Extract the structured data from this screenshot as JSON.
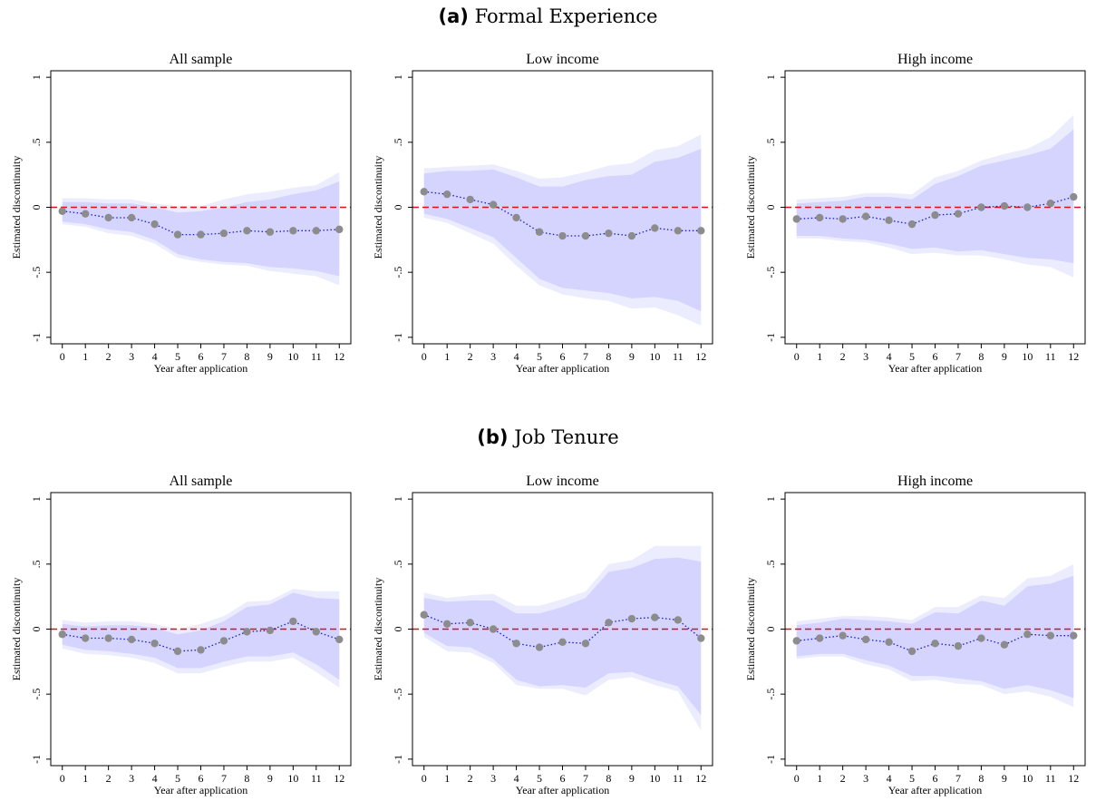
{
  "panels": [
    {
      "letter": "(a)",
      "title": "Formal Experience",
      "charts": [
        {
          "title": "All sample",
          "point": [
            -0.03,
            -0.05,
            -0.08,
            -0.08,
            -0.13,
            -0.21,
            -0.21,
            -0.2,
            -0.18,
            -0.19,
            -0.18,
            -0.18,
            -0.17
          ],
          "ci95_lo": [
            -0.11,
            -0.13,
            -0.17,
            -0.19,
            -0.25,
            -0.36,
            -0.4,
            -0.42,
            -0.43,
            -0.46,
            -0.47,
            -0.49,
            -0.53
          ],
          "ci95_hi": [
            0.04,
            0.04,
            0.03,
            0.03,
            0.0,
            -0.04,
            -0.03,
            0.0,
            0.04,
            0.06,
            0.1,
            0.13,
            0.2
          ],
          "ci99_lo": [
            -0.13,
            -0.15,
            -0.2,
            -0.22,
            -0.28,
            -0.39,
            -0.42,
            -0.44,
            -0.45,
            -0.49,
            -0.51,
            -0.53,
            -0.6
          ],
          "ci99_hi": [
            0.07,
            0.07,
            0.06,
            0.06,
            0.03,
            0.01,
            0.01,
            0.06,
            0.1,
            0.12,
            0.15,
            0.17,
            0.27
          ]
        },
        {
          "title": "Low income",
          "point": [
            0.12,
            0.1,
            0.06,
            0.02,
            -0.08,
            -0.19,
            -0.22,
            -0.22,
            -0.2,
            -0.22,
            -0.16,
            -0.18,
            -0.18
          ],
          "ci95_lo": [
            -0.05,
            -0.09,
            -0.16,
            -0.23,
            -0.39,
            -0.55,
            -0.62,
            -0.64,
            -0.66,
            -0.7,
            -0.69,
            -0.72,
            -0.8
          ],
          "ci95_hi": [
            0.26,
            0.28,
            0.28,
            0.29,
            0.23,
            0.16,
            0.16,
            0.21,
            0.24,
            0.25,
            0.35,
            0.38,
            0.45
          ],
          "ci99_lo": [
            -0.08,
            -0.12,
            -0.2,
            -0.28,
            -0.45,
            -0.6,
            -0.67,
            -0.7,
            -0.72,
            -0.78,
            -0.77,
            -0.83,
            -0.91
          ],
          "ci99_hi": [
            0.3,
            0.31,
            0.32,
            0.33,
            0.28,
            0.22,
            0.23,
            0.27,
            0.32,
            0.34,
            0.44,
            0.47,
            0.56
          ]
        },
        {
          "title": "High income",
          "point": [
            -0.09,
            -0.08,
            -0.09,
            -0.07,
            -0.1,
            -0.13,
            -0.06,
            -0.05,
            0.0,
            0.01,
            0.0,
            0.03,
            0.08
          ],
          "ci95_lo": [
            -0.22,
            -0.22,
            -0.24,
            -0.25,
            -0.28,
            -0.32,
            -0.31,
            -0.34,
            -0.33,
            -0.36,
            -0.39,
            -0.4,
            -0.43
          ],
          "ci95_hi": [
            0.03,
            0.04,
            0.05,
            0.08,
            0.08,
            0.06,
            0.18,
            0.24,
            0.32,
            0.36,
            0.4,
            0.45,
            0.6
          ],
          "ci99_lo": [
            -0.24,
            -0.24,
            -0.26,
            -0.27,
            -0.31,
            -0.36,
            -0.35,
            -0.37,
            -0.37,
            -0.4,
            -0.44,
            -0.46,
            -0.54
          ],
          "ci99_hi": [
            0.06,
            0.07,
            0.08,
            0.11,
            0.11,
            0.1,
            0.23,
            0.28,
            0.36,
            0.41,
            0.45,
            0.54,
            0.71
          ]
        }
      ]
    },
    {
      "letter": "(b)",
      "title": "Job Tenure",
      "charts": [
        {
          "title": "All sample",
          "point": [
            -0.04,
            -0.07,
            -0.07,
            -0.08,
            -0.11,
            -0.17,
            -0.16,
            -0.09,
            -0.02,
            -0.01,
            0.06,
            -0.02,
            -0.08
          ],
          "ci95_lo": [
            -0.12,
            -0.16,
            -0.17,
            -0.19,
            -0.22,
            -0.3,
            -0.3,
            -0.25,
            -0.21,
            -0.21,
            -0.18,
            -0.27,
            -0.39
          ],
          "ci95_hi": [
            0.04,
            0.02,
            0.03,
            0.03,
            0.01,
            -0.04,
            -0.01,
            0.06,
            0.17,
            0.19,
            0.28,
            0.24,
            0.23
          ],
          "ci99_lo": [
            -0.15,
            -0.19,
            -0.2,
            -0.22,
            -0.26,
            -0.34,
            -0.34,
            -0.29,
            -0.25,
            -0.25,
            -0.22,
            -0.33,
            -0.45
          ],
          "ci99_hi": [
            0.07,
            0.05,
            0.06,
            0.06,
            0.04,
            0.0,
            0.04,
            0.1,
            0.21,
            0.22,
            0.31,
            0.29,
            0.29
          ]
        },
        {
          "title": "Low income",
          "point": [
            0.11,
            0.04,
            0.05,
            0.0,
            -0.11,
            -0.14,
            -0.1,
            -0.11,
            0.05,
            0.08,
            0.09,
            0.07,
            -0.07
          ],
          "ci95_lo": [
            -0.03,
            -0.13,
            -0.14,
            -0.23,
            -0.39,
            -0.44,
            -0.43,
            -0.45,
            -0.34,
            -0.33,
            -0.39,
            -0.44,
            -0.66
          ],
          "ci95_hi": [
            0.24,
            0.21,
            0.22,
            0.22,
            0.12,
            0.12,
            0.17,
            0.24,
            0.44,
            0.47,
            0.54,
            0.55,
            0.52
          ],
          "ci99_lo": [
            -0.06,
            -0.17,
            -0.18,
            -0.26,
            -0.43,
            -0.46,
            -0.46,
            -0.51,
            -0.39,
            -0.37,
            -0.43,
            -0.48,
            -0.78
          ],
          "ci99_hi": [
            0.28,
            0.24,
            0.26,
            0.27,
            0.18,
            0.18,
            0.23,
            0.29,
            0.5,
            0.53,
            0.64,
            0.64,
            0.64
          ]
        },
        {
          "title": "High income",
          "point": [
            -0.09,
            -0.07,
            -0.05,
            -0.08,
            -0.1,
            -0.17,
            -0.11,
            -0.13,
            -0.07,
            -0.12,
            -0.04,
            -0.05,
            -0.05
          ],
          "ci95_lo": [
            -0.21,
            -0.19,
            -0.19,
            -0.24,
            -0.28,
            -0.36,
            -0.36,
            -0.38,
            -0.4,
            -0.46,
            -0.43,
            -0.47,
            -0.53
          ],
          "ci95_hi": [
            0.03,
            0.05,
            0.08,
            0.07,
            0.06,
            0.04,
            0.13,
            0.12,
            0.22,
            0.18,
            0.33,
            0.35,
            0.41
          ],
          "ci99_lo": [
            -0.23,
            -0.21,
            -0.21,
            -0.27,
            -0.31,
            -0.4,
            -0.39,
            -0.42,
            -0.43,
            -0.5,
            -0.48,
            -0.52,
            -0.6
          ],
          "ci99_hi": [
            0.06,
            0.08,
            0.1,
            0.1,
            0.09,
            0.07,
            0.17,
            0.17,
            0.26,
            0.24,
            0.39,
            0.41,
            0.5
          ]
        }
      ]
    }
  ],
  "chart_data": {
    "type": "line",
    "xlabel": "Year after application",
    "ylabel": "Estimated discontinuity",
    "x": [
      0,
      1,
      2,
      3,
      4,
      5,
      6,
      7,
      8,
      9,
      10,
      11,
      12
    ],
    "x_tick_labels": [
      "0",
      "1",
      "2",
      "3",
      "4",
      "5",
      "6",
      "7",
      "8",
      "9",
      "10",
      "11",
      "12"
    ],
    "y_tick_labels": [
      "-1",
      "-.5",
      "0",
      ".5",
      "1"
    ],
    "y_ticks": [
      -1,
      -0.5,
      0,
      0.5,
      1
    ],
    "ylim": [
      -1.05,
      1.05
    ],
    "xlim": [
      -0.5,
      12.5
    ],
    "reference_line_y": 0,
    "grid": false,
    "colors": {
      "point": "#8c8c8c",
      "line": "#1a1acc",
      "ci95": "#d4d4ff",
      "ci99": "#ececff",
      "zero": "#e0101a"
    }
  }
}
